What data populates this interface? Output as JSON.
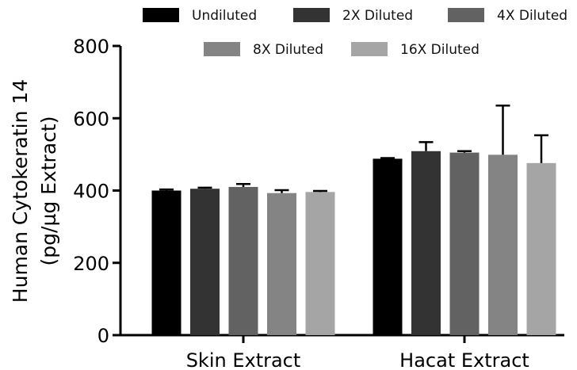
{
  "chart_data": {
    "type": "bar",
    "categories": [
      "Skin Extract",
      "Hacat Extract"
    ],
    "series": [
      {
        "name": "Undiluted",
        "color": "#000000",
        "values": [
          400,
          488
        ],
        "errors": [
          3,
          2
        ]
      },
      {
        "name": "2X Diluted",
        "color": "#333333",
        "values": [
          405,
          509
        ],
        "errors": [
          3,
          25
        ]
      },
      {
        "name": "4X Diluted",
        "color": "#626262",
        "values": [
          410,
          505
        ],
        "errors": [
          8,
          4
        ]
      },
      {
        "name": "8X Diluted",
        "color": "#848484",
        "values": [
          393,
          499
        ],
        "errors": [
          8,
          136
        ]
      },
      {
        "name": "16X Diluted",
        "color": "#a5a5a5",
        "values": [
          396,
          476
        ],
        "errors": [
          3,
          77
        ]
      }
    ],
    "ylabel_lines": [
      "Human Cytokeratin 14",
      "(pg/µg Extract)"
    ],
    "xlabel": "",
    "ylim": [
      0,
      800
    ],
    "yticks": [
      0,
      200,
      400,
      600,
      800
    ],
    "legend_position": "top",
    "grid": false
  }
}
